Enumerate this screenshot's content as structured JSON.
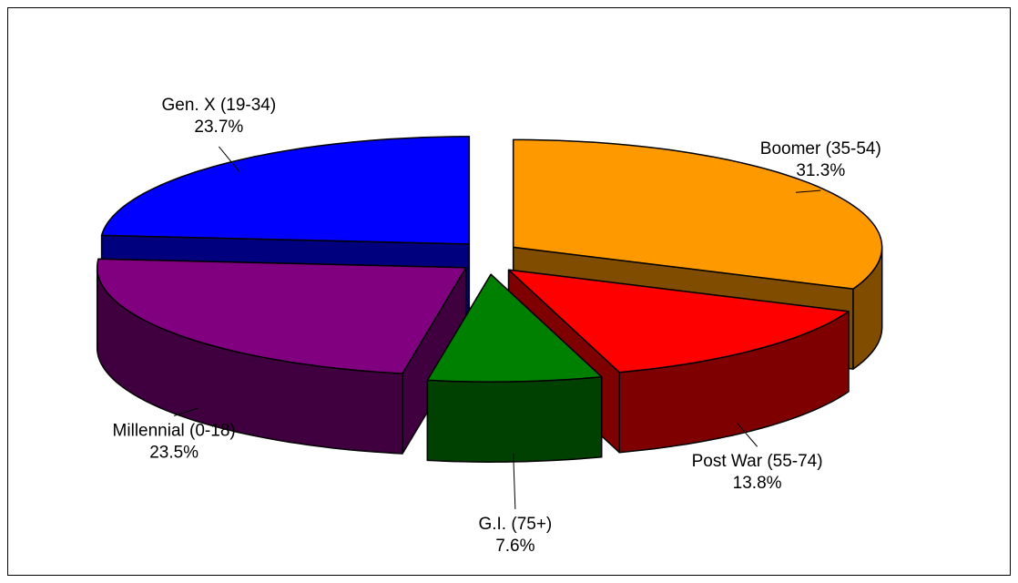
{
  "chart_data": {
    "type": "pie3d",
    "categories": [
      "Boomer (35-54)",
      "Post War (55-74)",
      "G.I. (75+)",
      "Millennial (0-18)",
      "Gen. X (19-34)"
    ],
    "values": [
      31.3,
      13.8,
      7.6,
      23.5,
      23.7
    ],
    "value_labels": [
      "31.3%",
      "13.8%",
      "7.6%",
      "23.5%",
      "23.7%"
    ],
    "colors": [
      "#ff9900",
      "#ff0000",
      "#008000",
      "#800080",
      "#0000ff"
    ]
  }
}
